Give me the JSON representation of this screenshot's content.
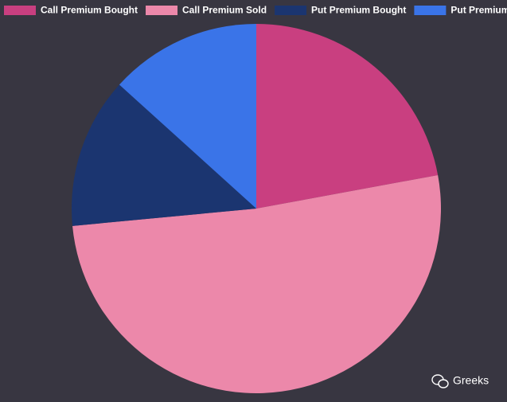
{
  "chart_data": {
    "type": "pie",
    "categories": [
      "Call Premium Bought",
      "Call Premium Sold",
      "Put Premium Bought",
      "Put Premium Sold"
    ],
    "values": [
      22.1,
      51.4,
      13.2,
      13.3
    ],
    "colors": [
      "#c93f80",
      "#ec88aa",
      "#1b3570",
      "#3a74e8"
    ],
    "legend": "top"
  },
  "watermark": "Greeks"
}
